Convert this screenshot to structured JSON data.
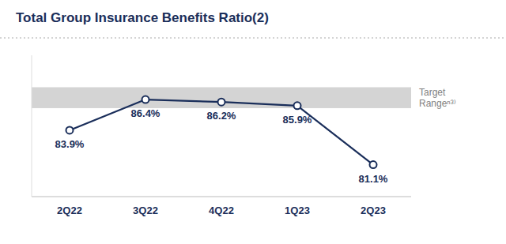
{
  "chart_data": {
    "type": "line",
    "title": "Total Group Insurance Benefits Ratio(2)",
    "categories": [
      "2Q22",
      "3Q22",
      "4Q22",
      "1Q23",
      "2Q23"
    ],
    "values": [
      83.9,
      86.4,
      86.2,
      85.9,
      81.1
    ],
    "value_labels": [
      "83.9%",
      "86.4%",
      "86.2%",
      "85.9%",
      "81.1%"
    ],
    "color": "#1a2e5a",
    "marker": "circle",
    "data_labels": true,
    "ylim": [
      78.5,
      90.0
    ],
    "tick_labels": "x",
    "grid": false,
    "bands": [
      {
        "from": 85.7,
        "to": 87.4,
        "color": "#d4d4d4",
        "label": "Target\nRangeⁿ³⁾"
      }
    ]
  }
}
